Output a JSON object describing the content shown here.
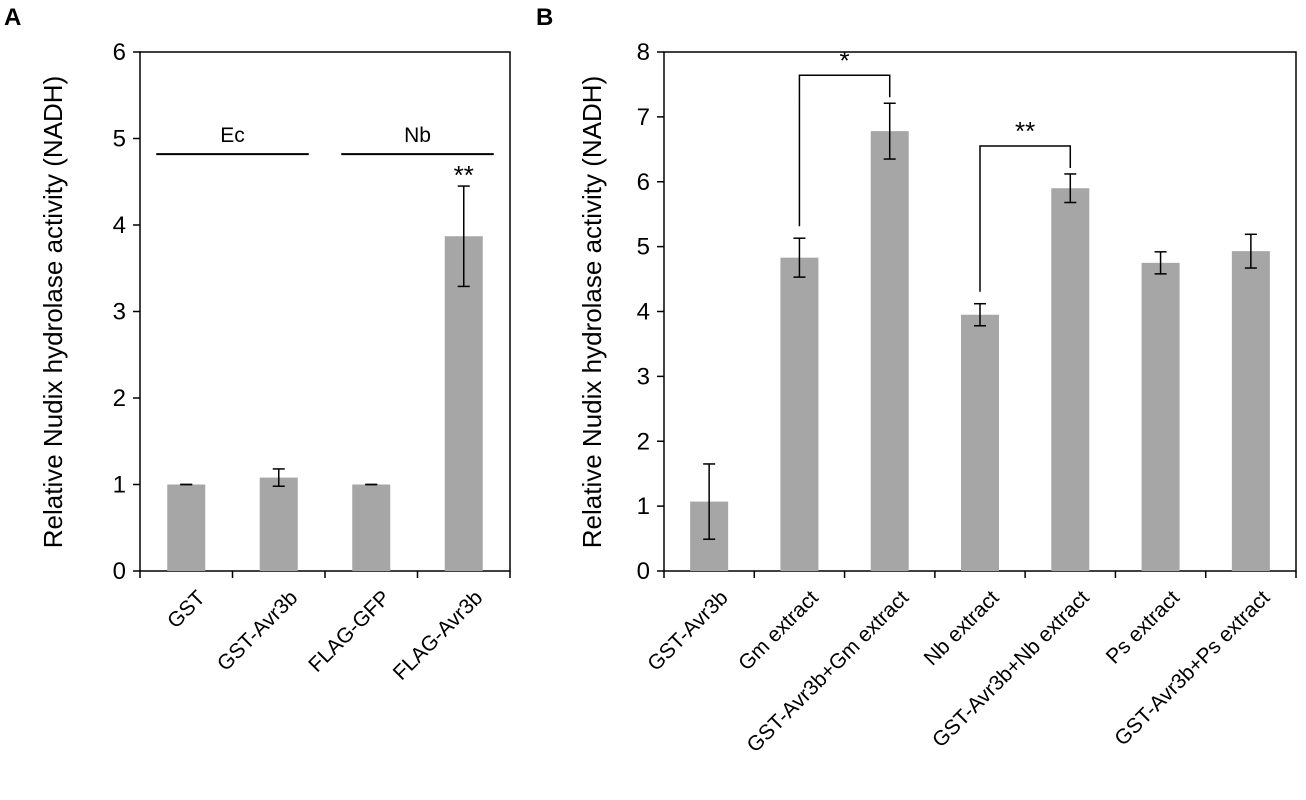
{
  "chart_data": [
    {
      "panel": "A",
      "type": "bar",
      "categories": [
        "GST",
        "GST-Avr3b",
        "FLAG-GFP",
        "FLAG-Avr3b"
      ],
      "values": [
        1.0,
        1.08,
        1.0,
        3.87
      ],
      "errors": [
        0.0,
        0.1,
        0.0,
        0.58
      ],
      "ylabel": "Relative Nudix hydrolase activity (NADH)",
      "ylim": [
        0,
        6
      ],
      "yticks": [
        0,
        1,
        2,
        3,
        4,
        5,
        6
      ],
      "bar_color": "#a6a6a6",
      "grid": false,
      "groups": [
        {
          "label": "Ec",
          "from": 0,
          "to": 1
        },
        {
          "label": "Nb",
          "from": 2,
          "to": 3
        }
      ],
      "annotations": [
        {
          "label": "**",
          "category": 3
        }
      ]
    },
    {
      "panel": "B",
      "type": "bar",
      "categories": [
        "GST-Avr3b",
        "Gm extract",
        "GST-Avr3b+Gm extract",
        "Nb extract",
        "GST-Avr3b+Nb extract",
        "Ps extract",
        "GST-Avr3b+Ps extract"
      ],
      "values": [
        1.07,
        4.83,
        6.78,
        3.95,
        5.9,
        4.75,
        4.93
      ],
      "errors": [
        0.58,
        0.3,
        0.43,
        0.17,
        0.22,
        0.17,
        0.26
      ],
      "ylabel": "Relative Nudix hydrolase activity (NADH)",
      "ylim": [
        0,
        8
      ],
      "yticks": [
        0,
        1,
        2,
        3,
        4,
        5,
        6,
        7,
        8
      ],
      "bar_color": "#a6a6a6",
      "grid": false,
      "brackets": [
        {
          "label": "*",
          "from": 1,
          "to": 2
        },
        {
          "label": "**",
          "from": 3,
          "to": 4
        }
      ]
    }
  ]
}
